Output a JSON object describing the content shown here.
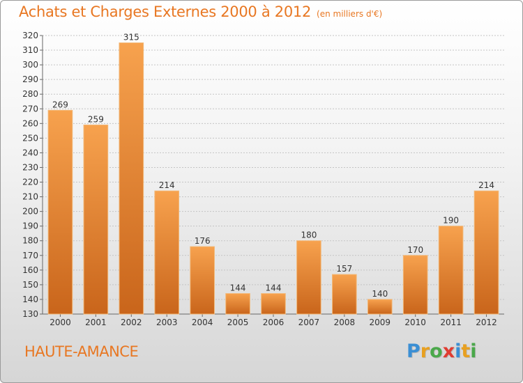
{
  "header": {
    "title": "Achats et Charges Externes 2000 à 2012",
    "subtitle": "(en milliers d'€)"
  },
  "footer": {
    "commune": "HAUTE-AMANCE",
    "logo_letters": [
      {
        "char": "P",
        "color": "#3b8fd4"
      },
      {
        "char": "r",
        "color": "#e8a020"
      },
      {
        "char": "o",
        "color": "#4aa84a"
      },
      {
        "char": "x",
        "color": "#e03c31"
      },
      {
        "char": "i",
        "color": "#3b8fd4"
      },
      {
        "char": "t",
        "color": "#e8a020"
      },
      {
        "char": "i",
        "color": "#4aa84a"
      }
    ]
  },
  "colors": {
    "accent": "#e87722",
    "bar_top": "#f7a24e",
    "bar_bottom": "#c9651b"
  },
  "chart_data": {
    "type": "bar",
    "title": "Achats et Charges Externes 2000 à 2012",
    "subtitle": "(en milliers d'€)",
    "categories": [
      "2000",
      "2001",
      "2002",
      "2003",
      "2004",
      "2005",
      "2006",
      "2007",
      "2008",
      "2009",
      "2010",
      "2011",
      "2012"
    ],
    "values": [
      269,
      259,
      315,
      214,
      176,
      144,
      144,
      180,
      157,
      140,
      170,
      190,
      214
    ],
    "ylim": [
      130,
      320
    ],
    "yticks": [
      130,
      140,
      150,
      160,
      170,
      180,
      190,
      200,
      210,
      220,
      230,
      240,
      250,
      260,
      270,
      280,
      290,
      300,
      310,
      320
    ],
    "grid": true,
    "xlabel": "",
    "ylabel": ""
  }
}
